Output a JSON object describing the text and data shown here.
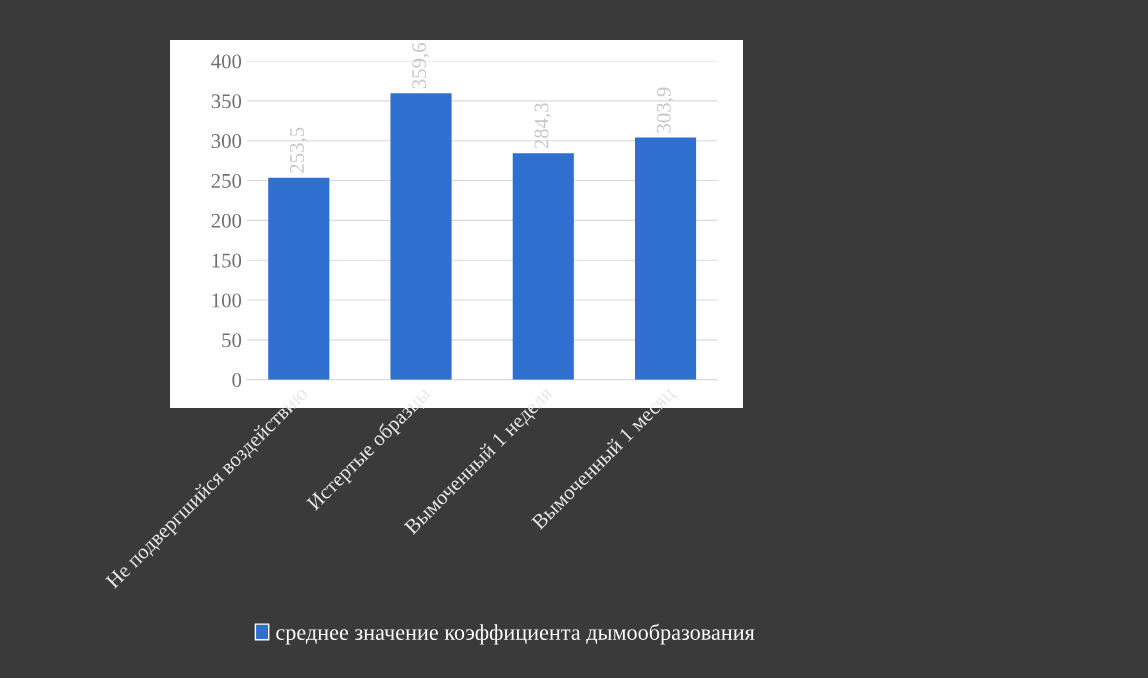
{
  "chart_data": {
    "type": "bar",
    "categories": [
      "Не подвергшийся воздействию",
      "Истертые образцы",
      "Вымоченный 1 неделя",
      "Вымоченный 1 месяц"
    ],
    "series": [
      {
        "name": "среднее значение коэффициента дымообразования",
        "color": "#2e6fd0",
        "values": [
          253.5,
          359.6,
          284.3,
          303.9
        ],
        "value_labels": [
          "253,5",
          "359,6",
          "284,3",
          "303,9"
        ]
      }
    ],
    "ylim": [
      0,
      400
    ],
    "yticks": [
      0,
      50,
      100,
      150,
      200,
      250,
      300,
      350,
      400
    ],
    "grid": "y",
    "legend": "bottom"
  }
}
